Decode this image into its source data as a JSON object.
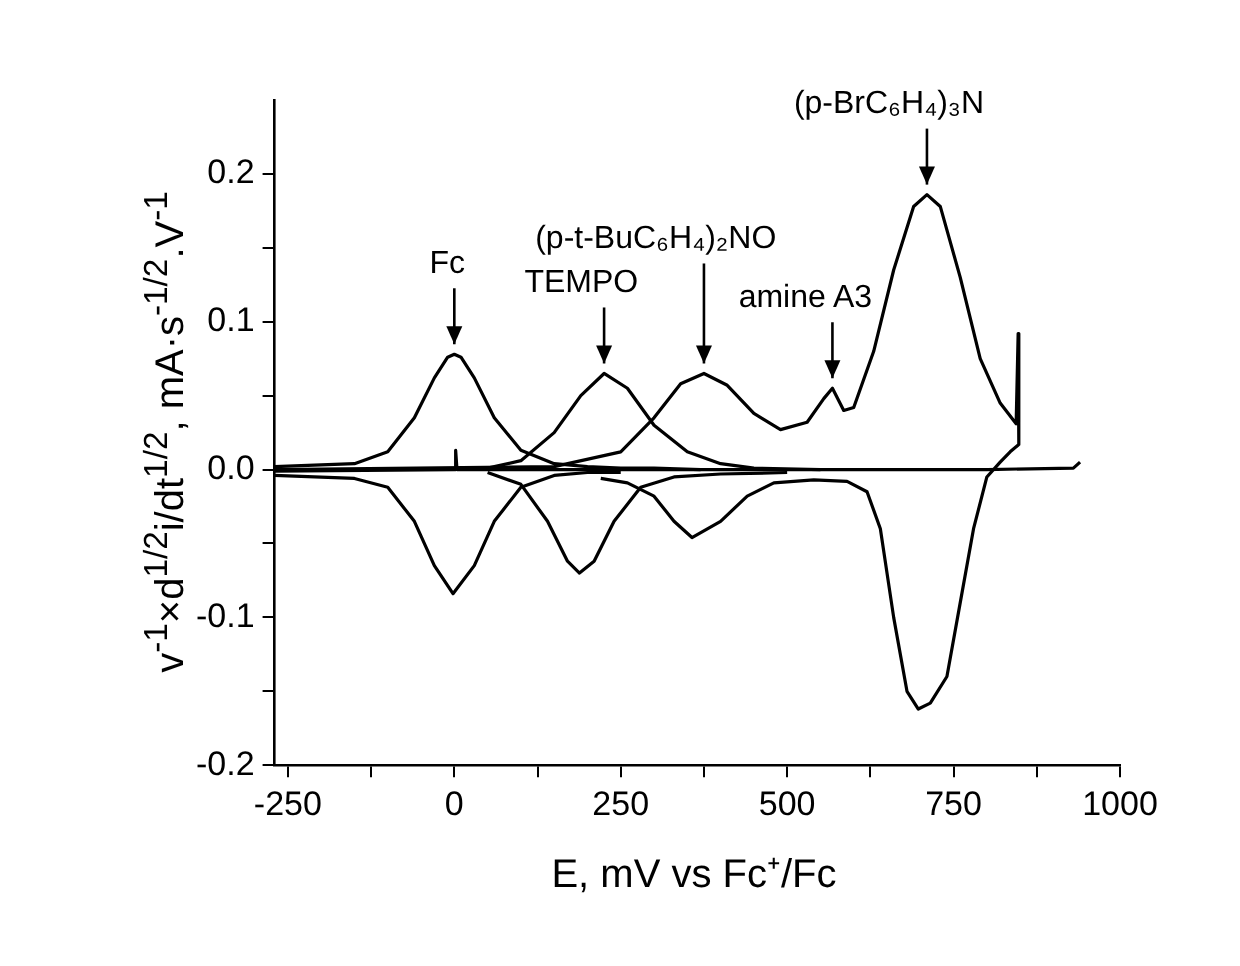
{
  "chart_data": {
    "type": "line",
    "xlabel": "E, mV vs  Fc⁺/Fc",
    "ylabel": "v$^{-1}$×d$^{1/2}$i/dt$^{1/2}$, mA·s$^{-1/2}$.V$^{-1}$",
    "xlim": [
      -270,
      1000
    ],
    "xticks": [
      -250,
      {
        "value": -125,
        "label": null
      },
      0,
      {
        "value": 125,
        "label": null
      },
      250,
      {
        "value": 375,
        "label": null
      },
      500,
      {
        "value": 625,
        "label": null
      },
      750,
      {
        "value": 875,
        "label": null
      },
      1000
    ],
    "ylim": [
      -0.2,
      0.25
    ],
    "yticks": [
      -0.2,
      {
        "value": -0.15,
        "label": null
      },
      -0.1,
      {
        "value": -0.05,
        "label": null
      },
      {
        "value": 0,
        "label": "0.0"
      },
      {
        "value": 0.05,
        "label": null
      },
      0.1,
      {
        "value": 0.15,
        "label": null
      },
      0.2
    ],
    "grid": false,
    "legend": false,
    "marker": "none",
    "line_style": "solid",
    "series": [
      {
        "color": "#000000",
        "x": [
          -270,
          -150,
          -100,
          -60,
          -30,
          -10,
          0,
          10,
          30,
          60,
          100,
          150,
          200,
          250,
          300,
          370
        ],
        "values": [
          0.002,
          0.004,
          0.012,
          0.035,
          0.062,
          0.076,
          0.078,
          0.076,
          0.062,
          0.035,
          0.013,
          0.004,
          0.002,
          0.001,
          0.001,
          0.0
        ]
      },
      {
        "color": "#000000",
        "x": [
          50,
          100,
          150,
          190,
          225,
          260,
          300,
          350,
          400,
          450,
          550
        ],
        "values": [
          0.001,
          0.006,
          0.025,
          0.05,
          0.065,
          0.055,
          0.03,
          0.012,
          0.004,
          0.001,
          0.0
        ]
      },
      {
        "color": "#000000",
        "x": [
          -270,
          150,
          250,
          300,
          340,
          375,
          410,
          450,
          490,
          530,
          555,
          568,
          585,
          600,
          630,
          660,
          690,
          710,
          730,
          760,
          790,
          820,
          844,
          847,
          848,
          835,
          820,
          800,
          780,
          760,
          740,
          715,
          697,
          680,
          660,
          640,
          620,
          590,
          540,
          480,
          440,
          400,
          357,
          330,
          300,
          260,
          220
        ],
        "values": [
          0.0,
          0.002,
          0.012,
          0.035,
          0.058,
          0.065,
          0.057,
          0.038,
          0.027,
          0.032,
          0.048,
          0.055,
          0.04,
          0.042,
          0.08,
          0.135,
          0.178,
          0.186,
          0.178,
          0.13,
          0.075,
          0.045,
          0.031,
          0.092,
          0.017,
          0.012,
          0.005,
          -0.005,
          -0.04,
          -0.09,
          -0.14,
          -0.158,
          -0.162,
          -0.15,
          -0.1,
          -0.04,
          -0.015,
          -0.008,
          -0.007,
          -0.009,
          -0.018,
          -0.035,
          -0.046,
          -0.035,
          -0.018,
          -0.009,
          -0.006
        ]
      },
      {
        "color": "#000000",
        "x": [
          -270,
          -150,
          -100,
          -60,
          -30,
          -2,
          30,
          60,
          100,
          150,
          200,
          250
        ],
        "values": [
          -0.004,
          -0.006,
          -0.012,
          -0.035,
          -0.065,
          -0.084,
          -0.065,
          -0.035,
          -0.012,
          -0.004,
          -0.002,
          -0.002
        ]
      },
      {
        "color": "#000000",
        "x": [
          50,
          100,
          140,
          170,
          188,
          210,
          240,
          280,
          330,
          400,
          500
        ],
        "values": [
          -0.002,
          -0.01,
          -0.035,
          -0.062,
          -0.07,
          -0.062,
          -0.035,
          -0.012,
          -0.005,
          -0.003,
          -0.002
        ]
      },
      {
        "color": "#000000",
        "x": [
          -270,
          0,
          2,
          4,
          400,
          600,
          800,
          930,
          940
        ],
        "values": [
          -0.001,
          0.0,
          0.013,
          0.0,
          0.0,
          0.0,
          0.0,
          0.001,
          0.005
        ]
      }
    ],
    "annotations": [
      {
        "text": "Fc",
        "x": 0,
        "y": 0.078
      },
      {
        "text": "TEMPO",
        "x": 225,
        "y": 0.065
      },
      {
        "text": "(p-t-BuC₆H₄)₂NO",
        "x": 375,
        "y": 0.065
      },
      {
        "text": "amine A3",
        "x": 568,
        "y": 0.055
      },
      {
        "text": "(p-BrC₆H₄)₃N",
        "x": 710,
        "y": 0.186
      }
    ]
  }
}
